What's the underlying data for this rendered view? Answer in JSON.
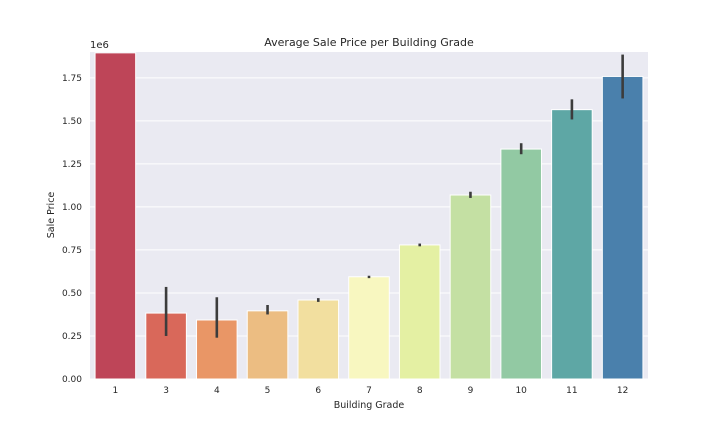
{
  "chart_data": {
    "type": "bar",
    "title": "Average Sale Price per Building Grade",
    "xlabel": "Building Grade",
    "ylabel": "Sale Price",
    "y_offset_label": "1e6",
    "categories": [
      "1",
      "3",
      "4",
      "5",
      "6",
      "7",
      "8",
      "9",
      "10",
      "11",
      "12"
    ],
    "values": [
      1.895,
      0.383,
      0.343,
      0.396,
      0.459,
      0.594,
      0.779,
      1.069,
      1.336,
      1.565,
      1.758
    ],
    "error_low": [
      null,
      0.25,
      0.24,
      0.375,
      0.448,
      0.586,
      0.771,
      1.052,
      1.306,
      1.508,
      1.63
    ],
    "error_high": [
      null,
      0.535,
      0.475,
      0.43,
      0.47,
      0.6,
      0.787,
      1.088,
      1.37,
      1.625,
      1.885
    ],
    "ylim": [
      0,
      1.9
    ],
    "yticks": [
      "0.00",
      "0.25",
      "0.50",
      "0.75",
      "1.00",
      "1.25",
      "1.50",
      "1.75"
    ],
    "grid": true,
    "colors": [
      "#be4558",
      "#d9685a",
      "#e99666",
      "#ecbd82",
      "#f2df9f",
      "#f8f7c0",
      "#e4f0a3",
      "#c4e0a3",
      "#92c9a3",
      "#5ea7a5",
      "#4a80ac"
    ]
  }
}
